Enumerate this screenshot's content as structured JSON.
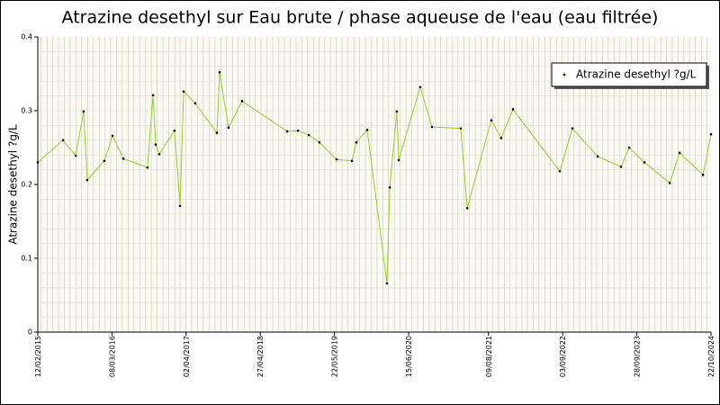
{
  "chart_data": {
    "type": "line",
    "title": "Atrazine desethyl sur Eau brute / phase aqueuse de l'eau (eau filtrée)",
    "y_label": "Atrazine desethyl ?g/L",
    "legend": "top-right",
    "grid": true,
    "xlim": [
      "12/02/2015",
      "22/10/2024"
    ],
    "xticks": [
      "12/02/2015",
      "08/03/2016",
      "02/04/2017",
      "27/04/2018",
      "22/05/2019",
      "15/06/2020",
      "09/08/2021",
      "03/09/2022",
      "28/09/2023",
      "22/10/2024"
    ],
    "ylim": [
      0,
      0.4
    ],
    "yticks": [
      0.0,
      0.1,
      0.2,
      0.3,
      0.4
    ],
    "series": [
      {
        "name": "Atrazine desethyl ?g/L",
        "color": "#99cc33",
        "x": [
          "12/02/2015",
          "25/06/2015",
          "30/08/2015",
          "11/10/2015",
          "30/10/2015",
          "28/01/2016",
          "11/03/2016",
          "07/05/2016",
          "11/09/2016",
          "10/10/2016",
          "24/10/2016",
          "12/11/2016",
          "31/01/2017",
          "01/03/2017",
          "20/03/2017",
          "20/05/2017",
          "11/09/2017",
          "25/09/2017",
          "11/11/2017",
          "21/01/2018",
          "15/09/2018",
          "11/11/2018",
          "07/01/2019",
          "04/03/2019",
          "02/06/2019",
          "22/08/2019",
          "14/09/2019",
          "10/11/2019",
          "22/02/2020",
          "08/03/2020",
          "14/04/2020",
          "24/04/2020",
          "15/08/2020",
          "16/10/2020",
          "16/03/2021",
          "19/04/2021",
          "24/08/2021",
          "15/10/2021",
          "16/12/2021",
          "19/08/2022",
          "24/10/2022",
          "06/03/2023",
          "07/07/2023",
          "19/08/2023",
          "07/11/2023",
          "19/03/2024",
          "10/05/2024",
          "10/09/2024",
          "22/10/2024"
        ],
        "values": [
          0.23,
          0.26,
          0.239,
          0.299,
          0.206,
          0.232,
          0.266,
          0.235,
          0.223,
          0.321,
          0.254,
          0.241,
          0.273,
          0.171,
          0.326,
          0.31,
          0.27,
          0.352,
          0.277,
          0.313,
          0.272,
          0.273,
          0.267,
          0.257,
          0.234,
          0.232,
          0.257,
          0.274,
          0.066,
          0.196,
          0.299,
          0.233,
          0.332,
          0.278,
          0.276,
          0.168,
          0.287,
          0.263,
          0.302,
          0.218,
          0.276,
          0.238,
          0.224,
          0.25,
          0.23,
          0.202,
          0.243,
          0.213,
          0.268
        ]
      }
    ]
  }
}
